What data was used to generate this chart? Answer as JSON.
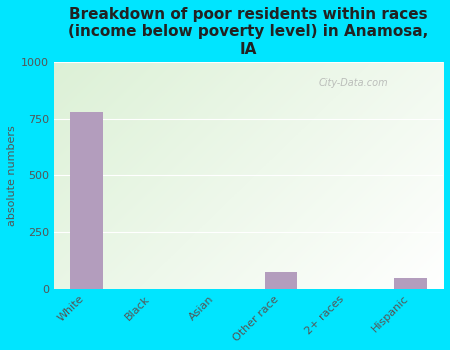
{
  "title": "Breakdown of poor residents within races\n(income below poverty level) in Anamosa,\nIA",
  "categories": [
    "White",
    "Black",
    "Asian",
    "Other race",
    "2+ races",
    "Hispanic"
  ],
  "values": [
    780,
    0,
    0,
    75,
    0,
    50
  ],
  "bar_color": "#b39dbd",
  "ylabel": "absolute numbers",
  "ylim": [
    0,
    1000
  ],
  "yticks": [
    0,
    250,
    500,
    750,
    1000
  ],
  "background_color": "#00e5ff",
  "title_fontsize": 11,
  "axis_label_fontsize": 8,
  "tick_fontsize": 8,
  "watermark": "City-Data.com"
}
